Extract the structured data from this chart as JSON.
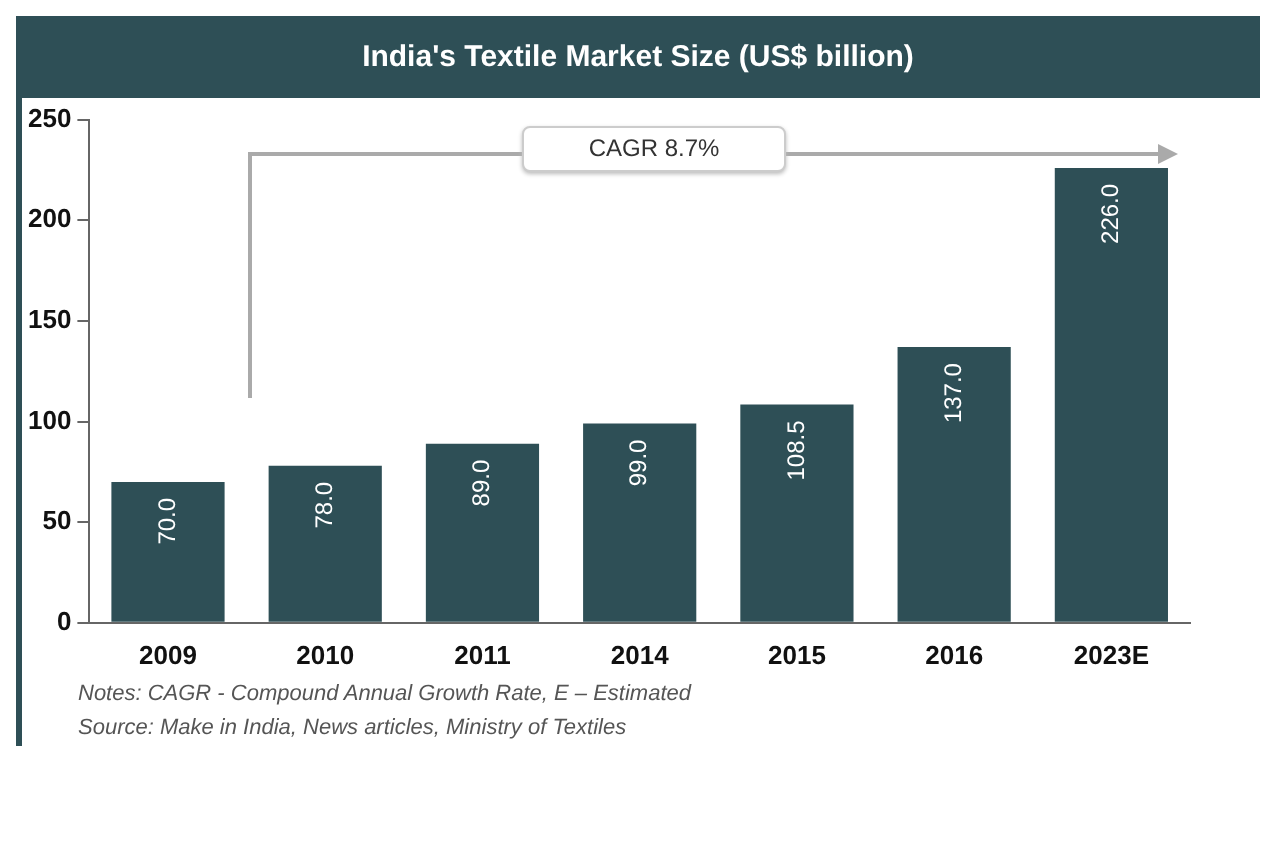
{
  "chart_data": {
    "type": "bar",
    "title": "India's Textile Market Size (US$ billion)",
    "categories": [
      "2009",
      "2010",
      "2011",
      "2014",
      "2015",
      "2016",
      "2023E"
    ],
    "values": [
      70.0,
      78.0,
      89.0,
      99.0,
      108.5,
      137.0,
      226.0
    ],
    "value_labels": [
      "70.0",
      "78.0",
      "89.0",
      "99.0",
      "108.5",
      "137.0",
      "226.0"
    ],
    "color": "#2e4f56",
    "ylim": [
      0,
      250
    ],
    "yticks": [
      0,
      50,
      100,
      150,
      200,
      250
    ],
    "grid": false,
    "legend": false,
    "annotations": [
      "CAGR 8.7%",
      "Notes: CAGR - Compound  Annual  Growth Rate, E – Estimated",
      "Source: Make in India, News articles, Ministry of Textiles"
    ]
  }
}
